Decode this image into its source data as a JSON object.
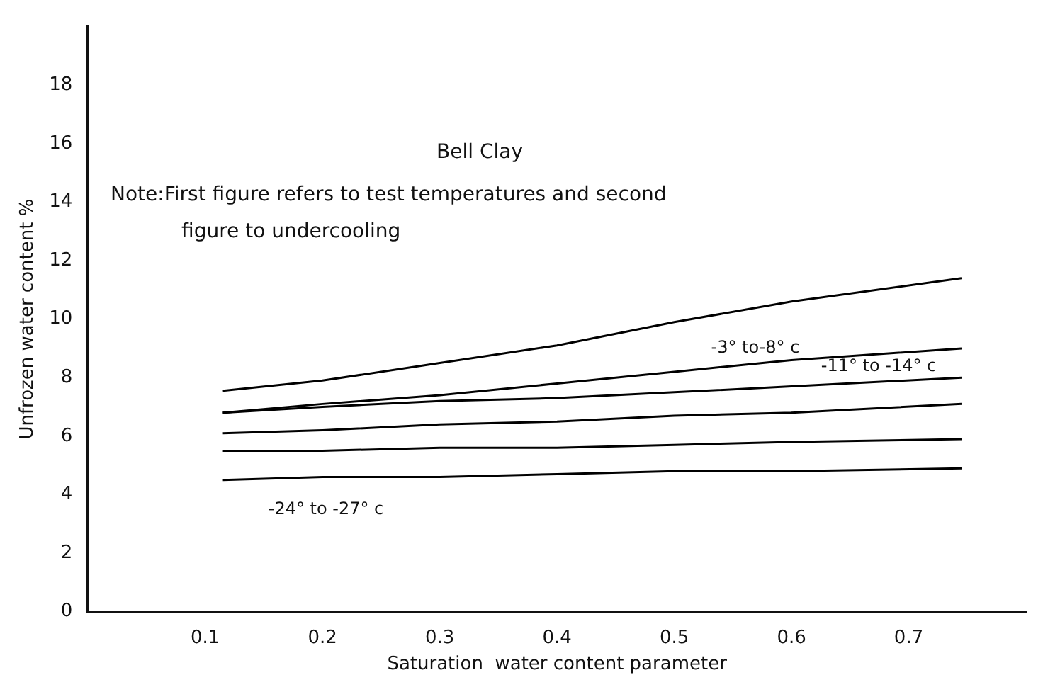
{
  "chart_data": {
    "type": "line",
    "xlabel": "Saturation  water content parameter",
    "ylabel": "Unfrozen water content %",
    "xlim": [
      0,
      0.8
    ],
    "xticks": [
      0.1,
      0.2,
      0.3,
      0.4,
      0.5,
      0.6,
      0.7
    ],
    "ylim": [
      0,
      20
    ],
    "yticks": [
      0,
      2,
      4,
      6,
      8,
      10,
      12,
      14,
      16,
      18
    ],
    "grid": false,
    "legend": false,
    "marker": "none",
    "x": [
      0.115,
      0.2,
      0.3,
      0.4,
      0.5,
      0.6,
      0.745
    ],
    "annotations": [
      "Bell Clay",
      "Note:First figure refers to test temperatures and second",
      "figure to undercooling",
      "-3° to-8° c",
      "-11° to -14° c",
      "-24° to -27° c"
    ],
    "series": [
      {
        "color": "#000000",
        "values": [
          6.8,
          7.1,
          7.4,
          7.8,
          8.2,
          8.6,
          9.0
        ]
      },
      {
        "color": "#000000",
        "values": [
          7.55,
          7.9,
          8.5,
          9.1,
          9.9,
          10.6,
          11.4
        ]
      },
      {
        "color": "#000000",
        "values": [
          5.5,
          5.5,
          5.6,
          5.6,
          5.7,
          5.8,
          5.9
        ]
      },
      {
        "color": "#000000",
        "values": [
          6.8,
          7.0,
          7.2,
          7.3,
          7.5,
          7.7,
          8.0
        ]
      },
      {
        "color": "#000000",
        "values": [
          4.5,
          4.6,
          4.6,
          4.7,
          4.8,
          4.8,
          4.9
        ]
      },
      {
        "color": "#000000",
        "values": [
          6.1,
          6.2,
          6.4,
          6.5,
          6.7,
          6.8,
          7.1
        ]
      }
    ]
  }
}
